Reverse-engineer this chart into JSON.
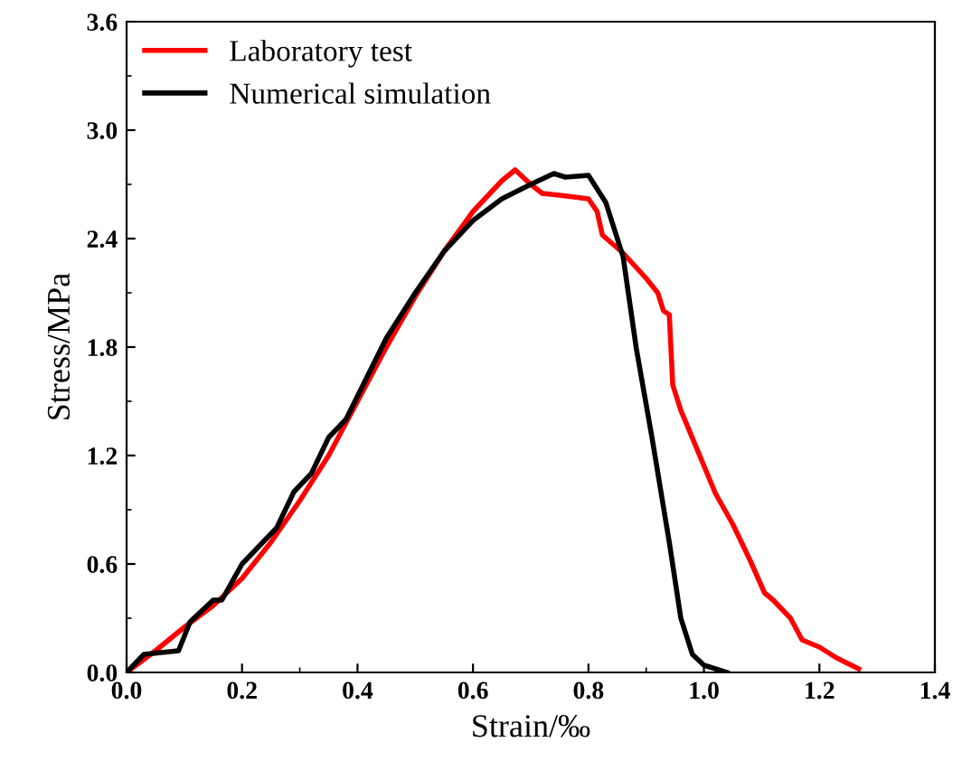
{
  "chart_data": {
    "type": "line",
    "xlabel": "Strain/‰",
    "ylabel": "Stress/MPa",
    "xlim": [
      0,
      1.4
    ],
    "ylim": [
      0,
      3.6
    ],
    "xticks": [
      {
        "value": 0,
        "label": "0.0"
      },
      {
        "value": 0.2,
        "label": "0.2"
      },
      {
        "value": 0.4,
        "label": "0.4"
      },
      {
        "value": 0.6,
        "label": "0.6"
      },
      {
        "value": 0.8,
        "label": "0.8"
      },
      {
        "value": 1.0,
        "label": "1.0"
      },
      {
        "value": 1.2,
        "label": "1.2"
      },
      {
        "value": 1.4,
        "label": "1.4"
      }
    ],
    "yticks": [
      {
        "value": 0,
        "label": "0.0"
      },
      {
        "value": 0.6,
        "label": "0.6"
      },
      {
        "value": 1.2,
        "label": "1.2"
      },
      {
        "value": 1.8,
        "label": "1.8"
      },
      {
        "value": 2.4,
        "label": "2.4"
      },
      {
        "value": 3.0,
        "label": "3.0"
      },
      {
        "value": 3.6,
        "label": "3.6"
      }
    ],
    "legend": "top left",
    "grid": false,
    "marker": "none",
    "line_style": "solid",
    "series": [
      {
        "name": "Laboratory test",
        "color": "#ff0000",
        "x": [
          0,
          0.05,
          0.1,
          0.15,
          0.2,
          0.25,
          0.3,
          0.35,
          0.4,
          0.45,
          0.5,
          0.55,
          0.6,
          0.65,
          0.673,
          0.7,
          0.72,
          0.75,
          0.8,
          0.815,
          0.824,
          0.86,
          0.9,
          0.92,
          0.93,
          0.94,
          0.946,
          0.96,
          1.02,
          1.05,
          1.08,
          1.105,
          1.12,
          1.15,
          1.17,
          1.2,
          1.23,
          1.268
        ],
        "values": [
          0,
          0.12,
          0.25,
          0.37,
          0.52,
          0.72,
          0.95,
          1.2,
          1.5,
          1.8,
          2.08,
          2.33,
          2.55,
          2.72,
          2.78,
          2.7,
          2.65,
          2.64,
          2.62,
          2.55,
          2.42,
          2.32,
          2.18,
          2.1,
          2.0,
          1.98,
          1.59,
          1.45,
          0.99,
          0.82,
          0.62,
          0.44,
          0.4,
          0.3,
          0.18,
          0.14,
          0.08,
          0.02
        ]
      },
      {
        "name": "Numerical simulation",
        "color": "#000000",
        "x": [
          0,
          0.03,
          0.09,
          0.11,
          0.15,
          0.165,
          0.2,
          0.23,
          0.26,
          0.29,
          0.32,
          0.35,
          0.38,
          0.45,
          0.5,
          0.55,
          0.6,
          0.65,
          0.7,
          0.74,
          0.76,
          0.8,
          0.83,
          0.86,
          0.883,
          0.91,
          0.94,
          0.96,
          0.98,
          1.0,
          1.04
        ],
        "values": [
          0,
          0.1,
          0.12,
          0.28,
          0.4,
          0.4,
          0.6,
          0.7,
          0.8,
          1.0,
          1.1,
          1.3,
          1.4,
          1.85,
          2.1,
          2.33,
          2.5,
          2.62,
          2.7,
          2.76,
          2.74,
          2.75,
          2.6,
          2.3,
          1.79,
          1.3,
          0.72,
          0.3,
          0.1,
          0.04,
          0
        ]
      }
    ]
  }
}
